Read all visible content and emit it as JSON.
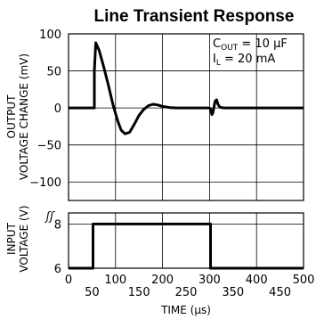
{
  "chart_data": [
    {
      "type": "line",
      "title": "Line Transient Response",
      "ylabel_lines": [
        "OUTPUT",
        "VOLTAGE CHANGE (mV)"
      ],
      "xlabel": "TIME (μs)",
      "ylim": [
        -125,
        100
      ],
      "xlim": [
        0,
        500
      ],
      "yticks": [
        "100",
        "50",
        "0",
        "−50",
        "−100"
      ],
      "ytick_values": [
        100,
        50,
        0,
        -50,
        -100
      ],
      "grid": true,
      "annotation": {
        "line1_main": "C",
        "line1_sub": "OUT",
        "line1_rest": " = 10 μF",
        "line2_main": "I",
        "line2_sub": "L",
        "line2_rest": " = 20 mA"
      },
      "series": [
        {
          "x": [
            0,
            55,
            55,
            58,
            65,
            75,
            85,
            95,
            105,
            112,
            120,
            130,
            140,
            150,
            160,
            170,
            180,
            190,
            200,
            215,
            230,
            250,
            270,
            290,
            298,
            302,
            305,
            307,
            309,
            312,
            315,
            318,
            322,
            330,
            340,
            360,
            400,
            500
          ],
          "y": [
            0,
            0,
            50,
            88,
            78,
            55,
            30,
            3,
            -18,
            -30,
            -35,
            -33,
            -22,
            -10,
            -2,
            3,
            5,
            4,
            2,
            0.5,
            0,
            0,
            0,
            0,
            0,
            -1,
            -9,
            -7,
            0,
            9,
            11,
            5,
            1,
            0,
            0,
            0,
            0,
            0
          ]
        }
      ]
    },
    {
      "type": "line",
      "ylabel_lines": [
        "INPUT",
        "VOLTAGE (V)"
      ],
      "ylim": [
        6,
        8.5
      ],
      "xlim": [
        0,
        500
      ],
      "yticks": [
        "8",
        "6"
      ],
      "ytick_values": [
        8,
        6
      ],
      "grid": true,
      "axis_break": "ʃʃ",
      "xticks_upper": [
        "0",
        "100",
        "200",
        "300",
        "400",
        "500"
      ],
      "xticks_upper_values": [
        0,
        100,
        200,
        300,
        400,
        500
      ],
      "xticks_lower": [
        "50",
        "150",
        "250",
        "350",
        "450"
      ],
      "xticks_lower_values": [
        50,
        150,
        250,
        350,
        450
      ],
      "series": [
        {
          "x": [
            0,
            52,
            52,
            302,
            302,
            500
          ],
          "y": [
            6,
            6,
            8,
            8,
            6,
            6
          ]
        }
      ]
    }
  ]
}
